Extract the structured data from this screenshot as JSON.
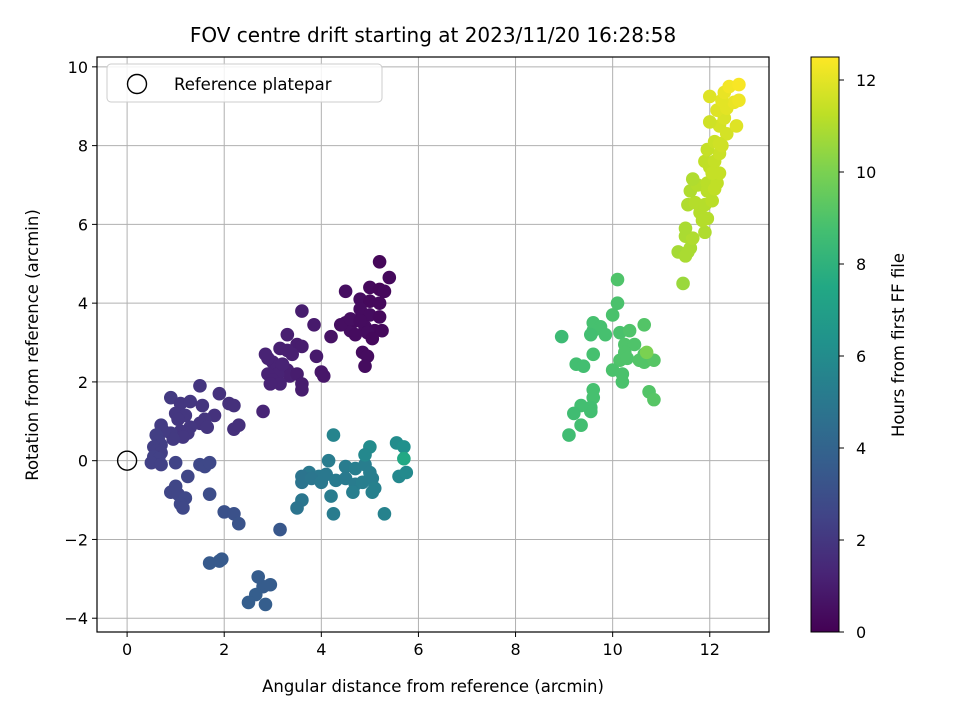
{
  "chart_data": {
    "type": "scatter",
    "title": "FOV centre drift starting at 2023/11/20 16:28:58",
    "xlabel": "Angular distance from reference (arcmin)",
    "ylabel": "Rotation from reference (arcmin)",
    "xlim": [
      -0.62,
      13.22
    ],
    "ylim": [
      -4.35,
      10.25
    ],
    "xticks": [
      0,
      2,
      4,
      6,
      8,
      10,
      12
    ],
    "yticks": [
      -4,
      -2,
      0,
      2,
      4,
      6,
      8,
      10
    ],
    "grid": true,
    "legend": {
      "placement": "upper-left",
      "entries": [
        {
          "label": "Reference platepar",
          "marker": "open-circle"
        }
      ]
    },
    "reference_point": {
      "x": 0,
      "y": 0
    },
    "colorbar": {
      "label": "Hours from first FF file",
      "range": [
        0,
        12.5
      ],
      "ticks": [
        0,
        2,
        4,
        6,
        8,
        10,
        12
      ],
      "colormap": "viridis"
    },
    "points": [
      {
        "x": 5.2,
        "y": 5.05,
        "h": 0.2
      },
      {
        "x": 5.4,
        "y": 4.65,
        "h": 0.3
      },
      {
        "x": 5.0,
        "y": 4.4,
        "h": 0.3
      },
      {
        "x": 5.2,
        "y": 4.35,
        "h": 0.2
      },
      {
        "x": 5.3,
        "y": 4.3,
        "h": 0.3
      },
      {
        "x": 4.8,
        "y": 4.1,
        "h": 0.4
      },
      {
        "x": 5.0,
        "y": 4.05,
        "h": 0.3
      },
      {
        "x": 5.2,
        "y": 4.0,
        "h": 0.3
      },
      {
        "x": 4.5,
        "y": 4.3,
        "h": 0.5
      },
      {
        "x": 4.8,
        "y": 3.85,
        "h": 0.4
      },
      {
        "x": 5.0,
        "y": 3.7,
        "h": 0.4
      },
      {
        "x": 5.2,
        "y": 3.65,
        "h": 0.3
      },
      {
        "x": 4.5,
        "y": 3.5,
        "h": 0.5
      },
      {
        "x": 4.6,
        "y": 3.3,
        "h": 0.5
      },
      {
        "x": 4.7,
        "y": 3.55,
        "h": 0.4
      },
      {
        "x": 4.9,
        "y": 3.4,
        "h": 0.4
      },
      {
        "x": 5.1,
        "y": 3.3,
        "h": 0.3
      },
      {
        "x": 5.25,
        "y": 3.3,
        "h": 0.3
      },
      {
        "x": 4.95,
        "y": 3.25,
        "h": 0.4
      },
      {
        "x": 5.05,
        "y": 3.1,
        "h": 0.3
      },
      {
        "x": 4.4,
        "y": 3.45,
        "h": 0.5
      },
      {
        "x": 4.2,
        "y": 3.15,
        "h": 0.6
      },
      {
        "x": 4.7,
        "y": 3.2,
        "h": 0.4
      },
      {
        "x": 4.6,
        "y": 3.6,
        "h": 0.5
      },
      {
        "x": 4.85,
        "y": 2.75,
        "h": 0.4
      },
      {
        "x": 4.95,
        "y": 2.65,
        "h": 0.4
      },
      {
        "x": 4.9,
        "y": 2.4,
        "h": 0.4
      },
      {
        "x": 4.8,
        "y": 3.55,
        "h": 0.4
      },
      {
        "x": 3.6,
        "y": 3.8,
        "h": 1.0
      },
      {
        "x": 3.85,
        "y": 3.45,
        "h": 0.9
      },
      {
        "x": 3.3,
        "y": 3.2,
        "h": 1.1
      },
      {
        "x": 3.5,
        "y": 2.95,
        "h": 1.0
      },
      {
        "x": 3.6,
        "y": 2.9,
        "h": 1.0
      },
      {
        "x": 3.15,
        "y": 2.85,
        "h": 1.1
      },
      {
        "x": 3.3,
        "y": 2.8,
        "h": 1.1
      },
      {
        "x": 3.4,
        "y": 2.7,
        "h": 1.1
      },
      {
        "x": 3.9,
        "y": 2.65,
        "h": 0.9
      },
      {
        "x": 3.0,
        "y": 2.5,
        "h": 1.2
      },
      {
        "x": 3.1,
        "y": 2.4,
        "h": 1.2
      },
      {
        "x": 3.2,
        "y": 2.35,
        "h": 1.2
      },
      {
        "x": 3.3,
        "y": 2.3,
        "h": 1.1
      },
      {
        "x": 2.9,
        "y": 2.6,
        "h": 1.2
      },
      {
        "x": 2.85,
        "y": 2.7,
        "h": 1.2
      },
      {
        "x": 3.35,
        "y": 2.15,
        "h": 1.1
      },
      {
        "x": 3.1,
        "y": 2.2,
        "h": 1.2
      },
      {
        "x": 2.9,
        "y": 2.2,
        "h": 1.2
      },
      {
        "x": 3.0,
        "y": 2.05,
        "h": 1.2
      },
      {
        "x": 3.15,
        "y": 1.95,
        "h": 1.2
      },
      {
        "x": 3.5,
        "y": 2.2,
        "h": 1.0
      },
      {
        "x": 3.6,
        "y": 1.95,
        "h": 1.0
      },
      {
        "x": 3.6,
        "y": 1.8,
        "h": 1.0
      },
      {
        "x": 4.0,
        "y": 2.25,
        "h": 0.8
      },
      {
        "x": 4.05,
        "y": 2.15,
        "h": 0.8
      },
      {
        "x": 3.2,
        "y": 2.45,
        "h": 1.2
      },
      {
        "x": 2.95,
        "y": 1.95,
        "h": 1.2
      },
      {
        "x": 2.8,
        "y": 1.25,
        "h": 1.3
      },
      {
        "x": 1.5,
        "y": 1.9,
        "h": 1.9
      },
      {
        "x": 0.9,
        "y": 1.6,
        "h": 2.1
      },
      {
        "x": 1.1,
        "y": 1.45,
        "h": 2.0
      },
      {
        "x": 1.3,
        "y": 1.5,
        "h": 2.0
      },
      {
        "x": 1.55,
        "y": 1.4,
        "h": 1.9
      },
      {
        "x": 1.9,
        "y": 1.7,
        "h": 1.8
      },
      {
        "x": 2.1,
        "y": 1.45,
        "h": 1.7
      },
      {
        "x": 2.2,
        "y": 1.4,
        "h": 1.7
      },
      {
        "x": 1.0,
        "y": 1.2,
        "h": 2.0
      },
      {
        "x": 1.2,
        "y": 1.15,
        "h": 2.0
      },
      {
        "x": 1.05,
        "y": 1.05,
        "h": 2.0
      },
      {
        "x": 1.8,
        "y": 1.15,
        "h": 1.8
      },
      {
        "x": 1.6,
        "y": 1.05,
        "h": 1.9
      },
      {
        "x": 1.5,
        "y": 0.95,
        "h": 1.9
      },
      {
        "x": 1.65,
        "y": 0.85,
        "h": 1.9
      },
      {
        "x": 1.3,
        "y": 0.85,
        "h": 2.0
      },
      {
        "x": 1.25,
        "y": 0.7,
        "h": 2.0
      },
      {
        "x": 1.1,
        "y": 0.75,
        "h": 2.0
      },
      {
        "x": 1.15,
        "y": 0.6,
        "h": 2.0
      },
      {
        "x": 0.9,
        "y": 0.7,
        "h": 2.1
      },
      {
        "x": 0.95,
        "y": 0.55,
        "h": 2.1
      },
      {
        "x": 0.7,
        "y": 0.9,
        "h": 2.2
      },
      {
        "x": 0.75,
        "y": 0.75,
        "h": 2.2
      },
      {
        "x": 0.6,
        "y": 0.65,
        "h": 2.3
      },
      {
        "x": 0.65,
        "y": 0.5,
        "h": 2.3
      },
      {
        "x": 0.7,
        "y": 0.4,
        "h": 2.3
      },
      {
        "x": 0.55,
        "y": 0.35,
        "h": 2.3
      },
      {
        "x": 0.6,
        "y": 0.25,
        "h": 2.3
      },
      {
        "x": 0.7,
        "y": 0.2,
        "h": 2.3
      },
      {
        "x": 0.55,
        "y": 0.1,
        "h": 2.4
      },
      {
        "x": 0.65,
        "y": 0.05,
        "h": 2.4
      },
      {
        "x": 0.5,
        "y": -0.05,
        "h": 2.4
      },
      {
        "x": 0.7,
        "y": -0.1,
        "h": 2.4
      },
      {
        "x": 1.0,
        "y": -0.05,
        "h": 2.5
      },
      {
        "x": 2.2,
        "y": 0.8,
        "h": 1.7
      },
      {
        "x": 2.3,
        "y": 0.9,
        "h": 1.7
      },
      {
        "x": 1.25,
        "y": -0.4,
        "h": 2.6
      },
      {
        "x": 1.5,
        "y": -0.1,
        "h": 2.7
      },
      {
        "x": 1.6,
        "y": -0.15,
        "h": 2.7
      },
      {
        "x": 1.7,
        "y": -0.05,
        "h": 2.7
      },
      {
        "x": 0.9,
        "y": -0.8,
        "h": 2.6
      },
      {
        "x": 1.0,
        "y": -0.65,
        "h": 2.6
      },
      {
        "x": 1.05,
        "y": -0.85,
        "h": 2.6
      },
      {
        "x": 1.2,
        "y": -0.95,
        "h": 2.7
      },
      {
        "x": 1.1,
        "y": -1.1,
        "h": 2.7
      },
      {
        "x": 1.15,
        "y": -1.2,
        "h": 2.7
      },
      {
        "x": 1.7,
        "y": -0.85,
        "h": 2.9
      },
      {
        "x": 2.0,
        "y": -1.3,
        "h": 3.1
      },
      {
        "x": 2.2,
        "y": -1.35,
        "h": 3.1
      },
      {
        "x": 2.3,
        "y": -1.6,
        "h": 3.2
      },
      {
        "x": 3.15,
        "y": -1.75,
        "h": 3.4
      },
      {
        "x": 1.7,
        "y": -2.6,
        "h": 3.5
      },
      {
        "x": 1.9,
        "y": -2.55,
        "h": 3.5
      },
      {
        "x": 1.95,
        "y": -2.5,
        "h": 3.5
      },
      {
        "x": 2.7,
        "y": -2.95,
        "h": 3.6
      },
      {
        "x": 2.8,
        "y": -3.2,
        "h": 3.6
      },
      {
        "x": 2.95,
        "y": -3.15,
        "h": 3.6
      },
      {
        "x": 2.65,
        "y": -3.4,
        "h": 3.7
      },
      {
        "x": 2.5,
        "y": -3.6,
        "h": 3.7
      },
      {
        "x": 2.85,
        "y": -3.65,
        "h": 3.7
      },
      {
        "x": 4.25,
        "y": 0.65,
        "h": 5.6
      },
      {
        "x": 4.15,
        "y": 0.0,
        "h": 5.2
      },
      {
        "x": 4.5,
        "y": -0.15,
        "h": 5.2
      },
      {
        "x": 4.7,
        "y": -0.2,
        "h": 5.3
      },
      {
        "x": 4.9,
        "y": -0.1,
        "h": 5.3
      },
      {
        "x": 5.0,
        "y": 0.35,
        "h": 6.0
      },
      {
        "x": 4.9,
        "y": 0.15,
        "h": 5.8
      },
      {
        "x": 5.55,
        "y": 0.45,
        "h": 6.0
      },
      {
        "x": 5.7,
        "y": 0.35,
        "h": 6.2
      },
      {
        "x": 3.75,
        "y": -0.3,
        "h": 5.0
      },
      {
        "x": 3.95,
        "y": -0.4,
        "h": 5.0
      },
      {
        "x": 4.1,
        "y": -0.35,
        "h": 5.0
      },
      {
        "x": 3.6,
        "y": -0.4,
        "h": 4.8
      },
      {
        "x": 3.6,
        "y": -0.55,
        "h": 4.8
      },
      {
        "x": 3.8,
        "y": -0.45,
        "h": 4.9
      },
      {
        "x": 4.0,
        "y": -0.55,
        "h": 5.0
      },
      {
        "x": 4.3,
        "y": -0.5,
        "h": 5.1
      },
      {
        "x": 4.5,
        "y": -0.45,
        "h": 5.1
      },
      {
        "x": 4.7,
        "y": -0.6,
        "h": 5.2
      },
      {
        "x": 4.85,
        "y": -0.55,
        "h": 5.3
      },
      {
        "x": 5.05,
        "y": -0.45,
        "h": 5.3
      },
      {
        "x": 5.0,
        "y": -0.3,
        "h": 5.3
      },
      {
        "x": 5.1,
        "y": -0.7,
        "h": 5.4
      },
      {
        "x": 5.05,
        "y": -0.8,
        "h": 5.4
      },
      {
        "x": 4.2,
        "y": -0.9,
        "h": 5.2
      },
      {
        "x": 3.6,
        "y": -1.0,
        "h": 4.9
      },
      {
        "x": 3.5,
        "y": -1.2,
        "h": 4.8
      },
      {
        "x": 4.25,
        "y": -1.35,
        "h": 5.2
      },
      {
        "x": 4.65,
        "y": -0.8,
        "h": 5.3
      },
      {
        "x": 5.3,
        "y": -1.35,
        "h": 5.5
      },
      {
        "x": 5.6,
        "y": -0.4,
        "h": 5.8
      },
      {
        "x": 5.75,
        "y": -0.3,
        "h": 5.9
      },
      {
        "x": 5.7,
        "y": 0.05,
        "h": 7.5
      },
      {
        "x": 10.1,
        "y": 4.6,
        "h": 9.0
      },
      {
        "x": 10.1,
        "y": 4.0,
        "h": 8.9
      },
      {
        "x": 10.0,
        "y": 3.7,
        "h": 8.9
      },
      {
        "x": 9.6,
        "y": 3.5,
        "h": 8.8
      },
      {
        "x": 9.75,
        "y": 3.4,
        "h": 8.8
      },
      {
        "x": 9.6,
        "y": 3.3,
        "h": 8.8
      },
      {
        "x": 9.55,
        "y": 3.2,
        "h": 8.7
      },
      {
        "x": 9.85,
        "y": 3.2,
        "h": 8.8
      },
      {
        "x": 10.15,
        "y": 3.25,
        "h": 8.9
      },
      {
        "x": 10.35,
        "y": 3.3,
        "h": 9.0
      },
      {
        "x": 10.65,
        "y": 3.45,
        "h": 9.1
      },
      {
        "x": 8.95,
        "y": 3.15,
        "h": 8.5
      },
      {
        "x": 10.25,
        "y": 2.95,
        "h": 9.0
      },
      {
        "x": 10.45,
        "y": 2.95,
        "h": 9.0
      },
      {
        "x": 10.25,
        "y": 2.75,
        "h": 9.0
      },
      {
        "x": 10.65,
        "y": 2.7,
        "h": 9.1
      },
      {
        "x": 10.15,
        "y": 2.55,
        "h": 9.0
      },
      {
        "x": 10.3,
        "y": 2.6,
        "h": 9.0
      },
      {
        "x": 10.55,
        "y": 2.55,
        "h": 9.1
      },
      {
        "x": 10.65,
        "y": 2.5,
        "h": 9.1
      },
      {
        "x": 10.85,
        "y": 2.55,
        "h": 9.2
      },
      {
        "x": 10.7,
        "y": 2.75,
        "h": 10.0
      },
      {
        "x": 9.6,
        "y": 2.7,
        "h": 8.8
      },
      {
        "x": 9.25,
        "y": 2.45,
        "h": 8.7
      },
      {
        "x": 9.4,
        "y": 2.4,
        "h": 8.7
      },
      {
        "x": 10.0,
        "y": 2.3,
        "h": 8.9
      },
      {
        "x": 10.2,
        "y": 2.2,
        "h": 8.9
      },
      {
        "x": 10.2,
        "y": 2.0,
        "h": 8.9
      },
      {
        "x": 9.6,
        "y": 1.8,
        "h": 8.8
      },
      {
        "x": 9.6,
        "y": 1.6,
        "h": 8.8
      },
      {
        "x": 9.55,
        "y": 1.35,
        "h": 8.7
      },
      {
        "x": 9.55,
        "y": 1.25,
        "h": 8.7
      },
      {
        "x": 9.35,
        "y": 1.4,
        "h": 8.7
      },
      {
        "x": 9.2,
        "y": 1.2,
        "h": 8.6
      },
      {
        "x": 9.35,
        "y": 0.9,
        "h": 8.7
      },
      {
        "x": 9.1,
        "y": 0.65,
        "h": 8.6
      },
      {
        "x": 10.75,
        "y": 1.75,
        "h": 9.1
      },
      {
        "x": 10.85,
        "y": 1.55,
        "h": 9.2
      },
      {
        "x": 11.45,
        "y": 4.5,
        "h": 10.6
      },
      {
        "x": 11.35,
        "y": 5.3,
        "h": 10.8
      },
      {
        "x": 11.5,
        "y": 5.2,
        "h": 10.9
      },
      {
        "x": 11.6,
        "y": 5.4,
        "h": 10.9
      },
      {
        "x": 11.5,
        "y": 5.7,
        "h": 10.9
      },
      {
        "x": 11.65,
        "y": 5.65,
        "h": 11.0
      },
      {
        "x": 11.5,
        "y": 5.9,
        "h": 10.9
      },
      {
        "x": 11.9,
        "y": 5.8,
        "h": 11.0
      },
      {
        "x": 11.95,
        "y": 6.15,
        "h": 11.1
      },
      {
        "x": 11.8,
        "y": 6.3,
        "h": 11.1
      },
      {
        "x": 11.55,
        "y": 6.5,
        "h": 11.0
      },
      {
        "x": 11.7,
        "y": 6.55,
        "h": 11.1
      },
      {
        "x": 11.9,
        "y": 6.5,
        "h": 11.1
      },
      {
        "x": 12.05,
        "y": 6.6,
        "h": 11.2
      },
      {
        "x": 11.6,
        "y": 6.85,
        "h": 11.0
      },
      {
        "x": 11.75,
        "y": 7.0,
        "h": 11.1
      },
      {
        "x": 11.95,
        "y": 7.05,
        "h": 11.2
      },
      {
        "x": 12.15,
        "y": 7.05,
        "h": 11.3
      },
      {
        "x": 11.65,
        "y": 7.15,
        "h": 11.0
      },
      {
        "x": 11.95,
        "y": 6.85,
        "h": 11.2
      },
      {
        "x": 12.1,
        "y": 6.9,
        "h": 11.3
      },
      {
        "x": 12.2,
        "y": 7.3,
        "h": 11.4
      },
      {
        "x": 12.0,
        "y": 7.45,
        "h": 11.3
      },
      {
        "x": 11.9,
        "y": 7.6,
        "h": 11.3
      },
      {
        "x": 12.1,
        "y": 7.6,
        "h": 11.4
      },
      {
        "x": 12.2,
        "y": 7.8,
        "h": 11.5
      },
      {
        "x": 11.95,
        "y": 7.9,
        "h": 11.4
      },
      {
        "x": 12.1,
        "y": 8.1,
        "h": 11.5
      },
      {
        "x": 12.25,
        "y": 8.0,
        "h": 11.6
      },
      {
        "x": 12.35,
        "y": 8.3,
        "h": 11.7
      },
      {
        "x": 12.2,
        "y": 8.5,
        "h": 11.7
      },
      {
        "x": 12.0,
        "y": 8.6,
        "h": 11.6
      },
      {
        "x": 12.3,
        "y": 8.7,
        "h": 11.8
      },
      {
        "x": 12.55,
        "y": 8.5,
        "h": 11.9
      },
      {
        "x": 12.15,
        "y": 8.9,
        "h": 11.9
      },
      {
        "x": 12.35,
        "y": 8.95,
        "h": 12.0
      },
      {
        "x": 12.5,
        "y": 9.1,
        "h": 12.1
      },
      {
        "x": 12.25,
        "y": 9.15,
        "h": 12.0
      },
      {
        "x": 12.6,
        "y": 9.15,
        "h": 12.2
      },
      {
        "x": 12.0,
        "y": 9.25,
        "h": 11.9
      },
      {
        "x": 12.3,
        "y": 9.35,
        "h": 12.1
      },
      {
        "x": 12.4,
        "y": 9.5,
        "h": 12.3
      },
      {
        "x": 12.6,
        "y": 9.55,
        "h": 12.4
      },
      {
        "x": 12.2,
        "y": 8.05,
        "h": 11.6
      },
      {
        "x": 12.05,
        "y": 7.3,
        "h": 11.4
      },
      {
        "x": 11.85,
        "y": 6.1,
        "h": 11.1
      },
      {
        "x": 11.55,
        "y": 5.3,
        "h": 10.9
      }
    ]
  }
}
